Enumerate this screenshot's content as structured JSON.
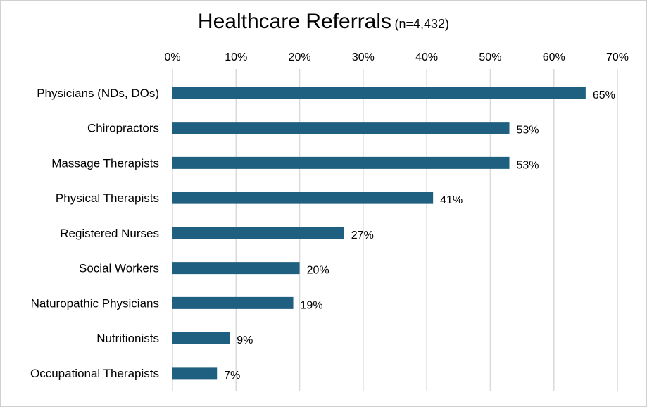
{
  "chart_data": {
    "type": "bar",
    "orientation": "horizontal",
    "title": "Healthcare Referrals",
    "subtitle": "(n=4,432)",
    "categories": [
      "Physicians (NDs, DOs)",
      "Chiropractors",
      "Massage Therapists",
      "Physical Therapists",
      "Registered Nurses",
      "Social Workers",
      "Naturopathic Physicians",
      "Nutritionists",
      "Occupational Therapists"
    ],
    "values": [
      65,
      53,
      53,
      41,
      27,
      20,
      19,
      9,
      7
    ],
    "data_labels": [
      "65%",
      "53%",
      "53%",
      "41%",
      "27%",
      "20%",
      "19%",
      "9%",
      "7%"
    ],
    "x_ticks": [
      "0%",
      "10%",
      "20%",
      "30%",
      "40%",
      "50%",
      "60%",
      "70%"
    ],
    "xlim": [
      0,
      70
    ],
    "x_axis_position": "top",
    "grid": true,
    "bar_color": "#1f6080",
    "grid_color": "#d9d9d9"
  }
}
